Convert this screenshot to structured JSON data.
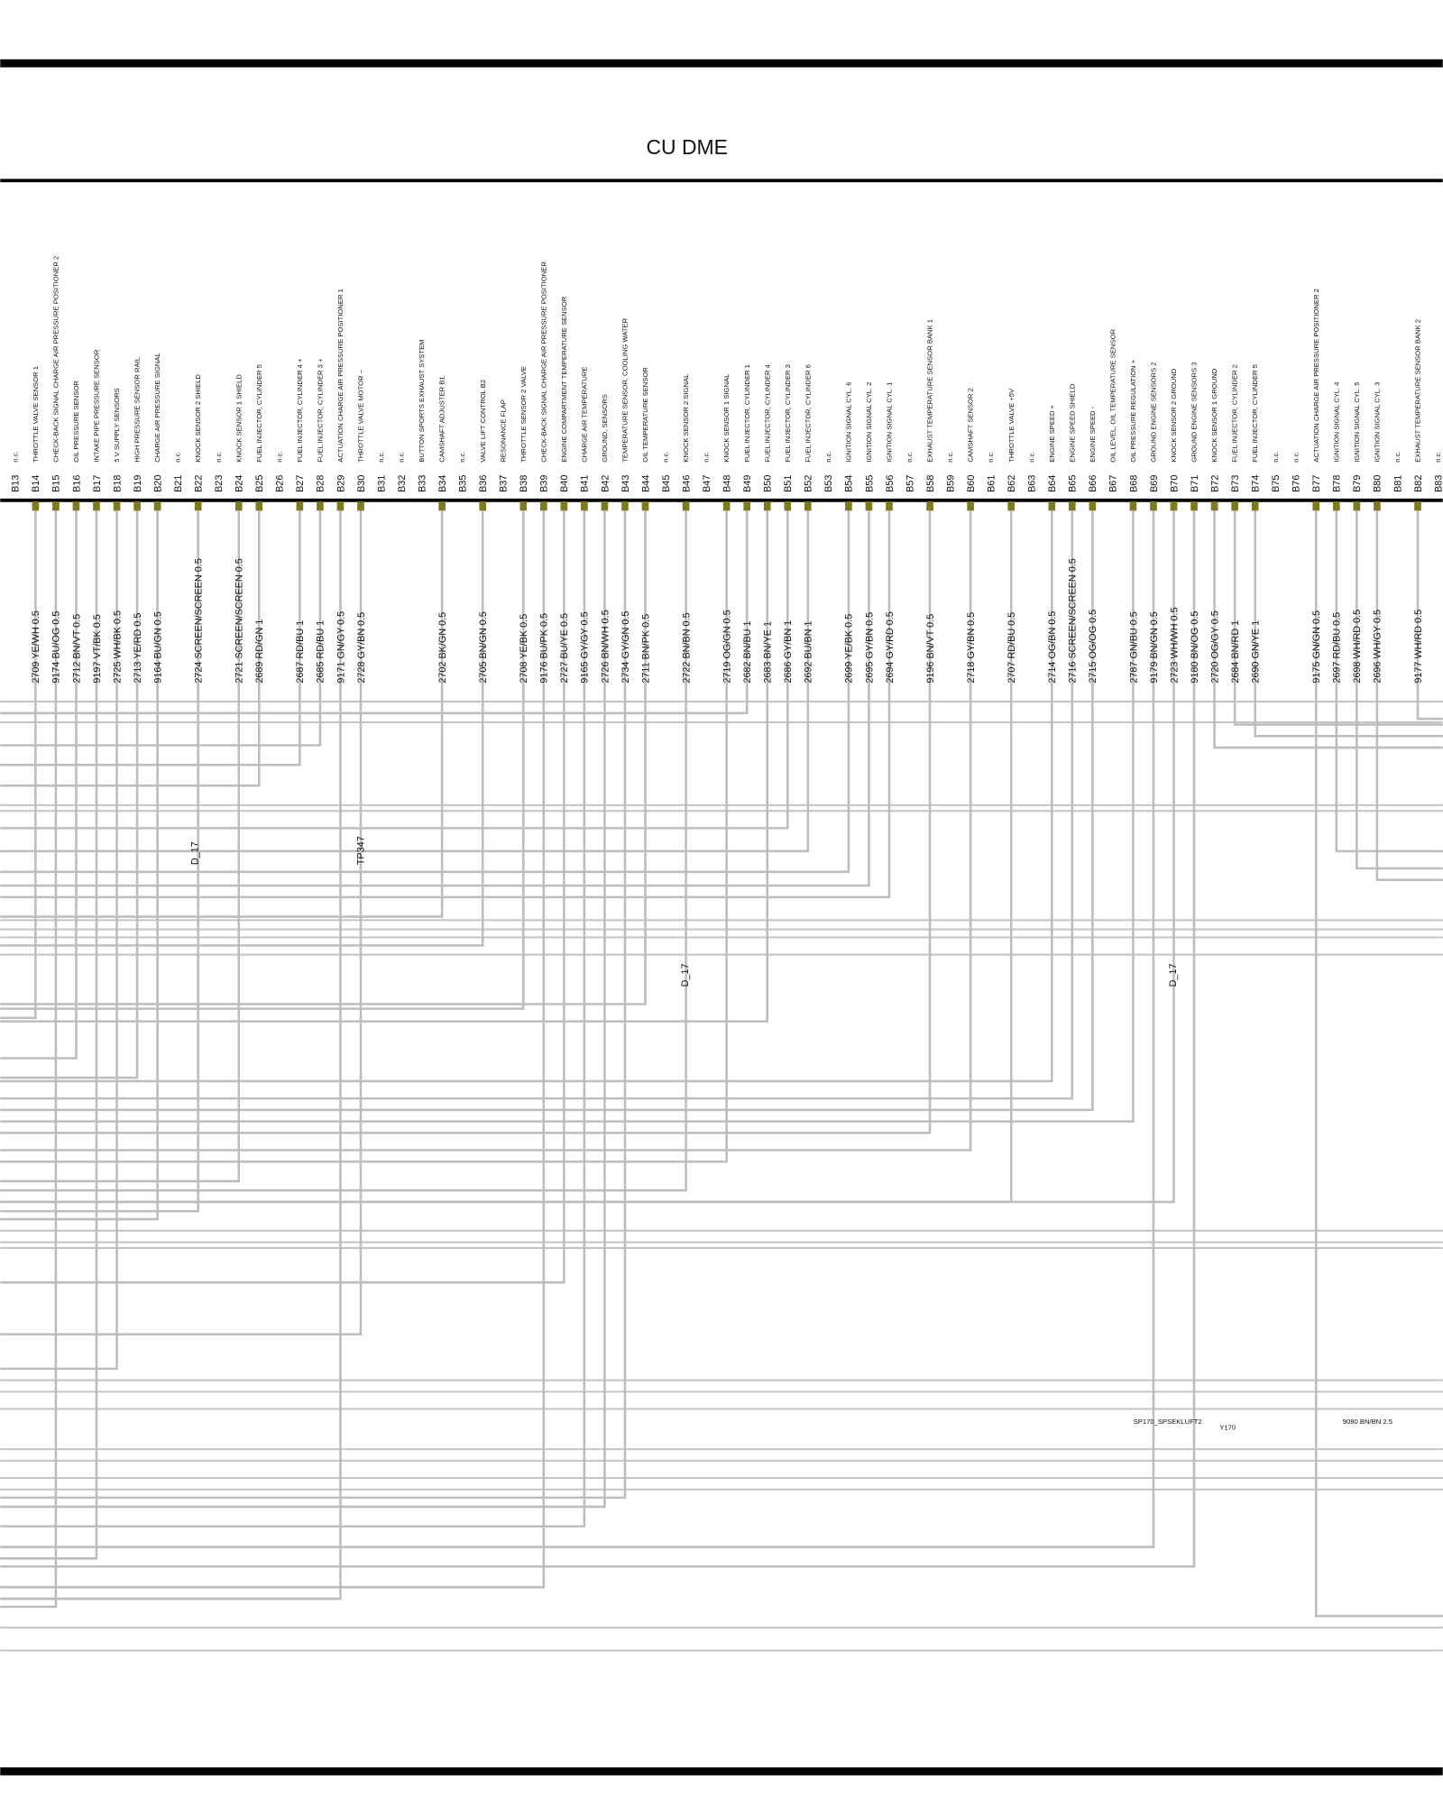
{
  "title": "CU DME",
  "pins": [
    {
      "pin": "B13",
      "description": "n.c."
    },
    {
      "pin": "B14",
      "description": "THROTTLE VALVE SENSOR 1",
      "wire": "2709 YE/WH 0.5"
    },
    {
      "pin": "B15",
      "description": "CHECK-BACK SIGNAL CHARGE AIR PRESSURE POSITIONER 2",
      "wire": "9174 BU/OG 0.5"
    },
    {
      "pin": "B16",
      "description": "OIL PRESSURE SENSOR",
      "wire": "2712 BN/VT 0.5"
    },
    {
      "pin": "B17",
      "description": "INTAKE PIPE PRESSURE SENSOR",
      "wire": "9197 VT/BK 0.5"
    },
    {
      "pin": "B18",
      "description": "5 V SUPPLY SENSORS",
      "wire": "2725 WH/BK 0.5"
    },
    {
      "pin": "B19",
      "description": "HIGH PRESSURE SENSOR RAIL",
      "wire": "2713 YE/RD 0.5"
    },
    {
      "pin": "B20",
      "description": "CHARGE AIR PRESSURE SIGNAL",
      "wire": "9164 BU/GN 0.5"
    },
    {
      "pin": "B21",
      "description": "n.c."
    },
    {
      "pin": "B22",
      "description": "KNOCK SENSOR 2 SHIELD",
      "wire": "2724 SCREEN/SCREEN 0.5"
    },
    {
      "pin": "B23",
      "description": "n.c."
    },
    {
      "pin": "B24",
      "description": "KNOCK SENSOR 1 SHIELD",
      "wire": "2721 SCREEN/SCREEN 0.5"
    },
    {
      "pin": "B25",
      "description": "FUEL INJECTOR, CYLINDER 5",
      "wire": "2689 RD/GN 1"
    },
    {
      "pin": "B26",
      "description": "n.c."
    },
    {
      "pin": "B27",
      "description": "FUEL INJECTOR, CYLINDER 4 +",
      "wire": "2687 RD/BU 1"
    },
    {
      "pin": "B28",
      "description": "FUEL INJECTOR, CYLINDER 3 +",
      "wire": "2685 RD/BU 1"
    },
    {
      "pin": "B29",
      "description": "ACTUATION CHARGE AIR PRESSURE POSITIONER 1",
      "wire": "9171 GN/GY 0.5"
    },
    {
      "pin": "B30",
      "description": "THROTTLE VALVE MOTOR –",
      "wire": "2728 GY/BN 0.5"
    },
    {
      "pin": "B31",
      "description": "n.c."
    },
    {
      "pin": "B32",
      "description": "n.c."
    },
    {
      "pin": "B33",
      "description": "BUTTON SPORTS EXHAUST SYSTEM"
    },
    {
      "pin": "B34",
      "description": "CAMSHAFT ADJUSTER B1",
      "wire": "2702 BK/GN 0.5"
    },
    {
      "pin": "B35",
      "description": "n.c."
    },
    {
      "pin": "B36",
      "description": "VALVE LIFT CONTROL B2",
      "wire": "2705 BN/GN 0.5"
    },
    {
      "pin": "B37",
      "description": "RESONANCE FLAP"
    },
    {
      "pin": "B38",
      "description": "THROTTLE SENSOR 2 VALVE",
      "wire": "2708 YE/BK 0.5"
    },
    {
      "pin": "B39",
      "description": "CHECK-BACK SIGNAL CHARGE AIR PRESSURE POSITIONER",
      "wire": "9176 BU/PK 0.5"
    },
    {
      "pin": "B40",
      "description": "ENGINE COMPARTMENT TEMPERATURE SENSOR",
      "wire": "2727 BU/YE 0.5"
    },
    {
      "pin": "B41",
      "description": "CHARGE AIR TEMPERATURE",
      "wire": "9165 GY/GY 0.5"
    },
    {
      "pin": "B42",
      "description": "GROUND, SENSORS",
      "wire": "2726 BN/WH 0.5"
    },
    {
      "pin": "B43",
      "description": "TEMPERATURE SENSOR, COOLING WATER",
      "wire": "2734 GY/GN 0.5"
    },
    {
      "pin": "B44",
      "description": "OIL TEMPERATURE SENSOR",
      "wire": "2711 BN/PK 0.5"
    },
    {
      "pin": "B45",
      "description": "n.c."
    },
    {
      "pin": "B46",
      "description": "KNOCK SENSOR 2 SIGNAL",
      "wire": "2722 BN/BN 0.5"
    },
    {
      "pin": "B47",
      "description": "n.c."
    },
    {
      "pin": "B48",
      "description": "KNOCK SENSOR 1 SIGNAL",
      "wire": "2719 OG/GN 0.5"
    },
    {
      "pin": "B49",
      "description": "FUEL INJECTOR, CYLINDER 1",
      "wire": "2682 BN/BU 1"
    },
    {
      "pin": "B50",
      "description": "FUEL INJECTOR, CYLINDER 4",
      "wire": "2683 BN/YE 1"
    },
    {
      "pin": "B51",
      "description": "FUEL INJECTOR, CYLINDER 3",
      "wire": "2686 GY/BN 1"
    },
    {
      "pin": "B52",
      "description": "FUEL INJECTOR, CYLINDER 6",
      "wire": "2692 BU/BN 1"
    },
    {
      "pin": "B53",
      "description": "n.c."
    },
    {
      "pin": "B54",
      "description": "IGNITION SIGNAL CYL. 6",
      "wire": "2699 YE/BK 0.5"
    },
    {
      "pin": "B55",
      "description": "IGNITION SIGNAL CYL. 2",
      "wire": "2695 GY/BN 0.5"
    },
    {
      "pin": "B56",
      "description": "IGNITION SIGNAL CYL. 1",
      "wire": "2694 GY/RD 0.5"
    },
    {
      "pin": "B57",
      "description": "n.c."
    },
    {
      "pin": "B58",
      "description": "EXHAUST TEMPERATURE SENSOR BANK 1",
      "wire": "9196 BN/VT 0.5"
    },
    {
      "pin": "B59",
      "description": "n.c."
    },
    {
      "pin": "B60",
      "description": "CAMSHAFT SENSOR 2",
      "wire": "2718 GY/BN 0.5"
    },
    {
      "pin": "B61",
      "description": "n.c."
    },
    {
      "pin": "B62",
      "description": "THROTTLE VALVE +5V",
      "wire": "2707 RD/BU 0.5"
    },
    {
      "pin": "B63",
      "description": "n.c."
    },
    {
      "pin": "B64",
      "description": "ENGINE SPEED +",
      "wire": "2714 OG/BN 0.5"
    },
    {
      "pin": "B65",
      "description": "ENGINE SPEED SHIELD",
      "wire": "2716 SCREEN/SCREEN 0.5"
    },
    {
      "pin": "B66",
      "description": "ENGINE SPEED -",
      "wire": "2715 OG/OG 0.5"
    },
    {
      "pin": "B67",
      "description": "OIL LEVEL, OIL TEMPERATURE SENSOR"
    },
    {
      "pin": "B68",
      "description": "OIL PRESSURE REGULATION +",
      "wire": "2787 GN/BU 0.5"
    },
    {
      "pin": "B69",
      "description": "GROUND ENGINE SENSORS 2",
      "wire": "9179 BN/GN 0.5"
    },
    {
      "pin": "B70",
      "description": "KNOCK SENSOR 2 GROUND",
      "wire": "2723 WH/WH 0.5"
    },
    {
      "pin": "B71",
      "description": "GROUND ENGINE SENSORS 3",
      "wire": "9180 BN/OG 0.5"
    },
    {
      "pin": "B72",
      "description": "KNOCK SENSOR 1 GROUND",
      "wire": "2720 OG/GY 0.5"
    },
    {
      "pin": "B73",
      "description": "FUEL INJECTOR, CYLINDER 2",
      "wire": "2684 BN/RD 1"
    },
    {
      "pin": "B74",
      "description": "FUEL INJECTOR, CYLINDER 5",
      "wire": "2690 GN/YE 1"
    },
    {
      "pin": "B75",
      "description": "n.c."
    },
    {
      "pin": "B76",
      "description": "n.c."
    },
    {
      "pin": "B77",
      "description": "ACTUATION CHARGE AIR PRESSURE POSITIONER 2",
      "wire": "9175 GN/GN 0.5"
    },
    {
      "pin": "B78",
      "description": "IGNITION SIGNAL CYL. 4",
      "wire": "2697 RD/BU 0.5"
    },
    {
      "pin": "B79",
      "description": "IGNITION SIGNAL CYL. 5",
      "wire": "2698 WH/RD 0.5"
    },
    {
      "pin": "B80",
      "description": "IGNITION SIGNAL CYL. 3",
      "wire": "2696 WH/GY 0.5"
    },
    {
      "pin": "B81",
      "description": "n.c."
    },
    {
      "pin": "B82",
      "description": "EXHAUST TEMPERATURE SENSOR BANK 2",
      "wire": "9177 WH/RD 0.5"
    },
    {
      "pin": "B83",
      "description": "n.c."
    }
  ],
  "annotations": [
    "D_17",
    "TP347",
    "D_17",
    "D_17",
    "SP170_SPSEKLUFT2",
    "Y170",
    "9080 BN/BN 2.5"
  ]
}
